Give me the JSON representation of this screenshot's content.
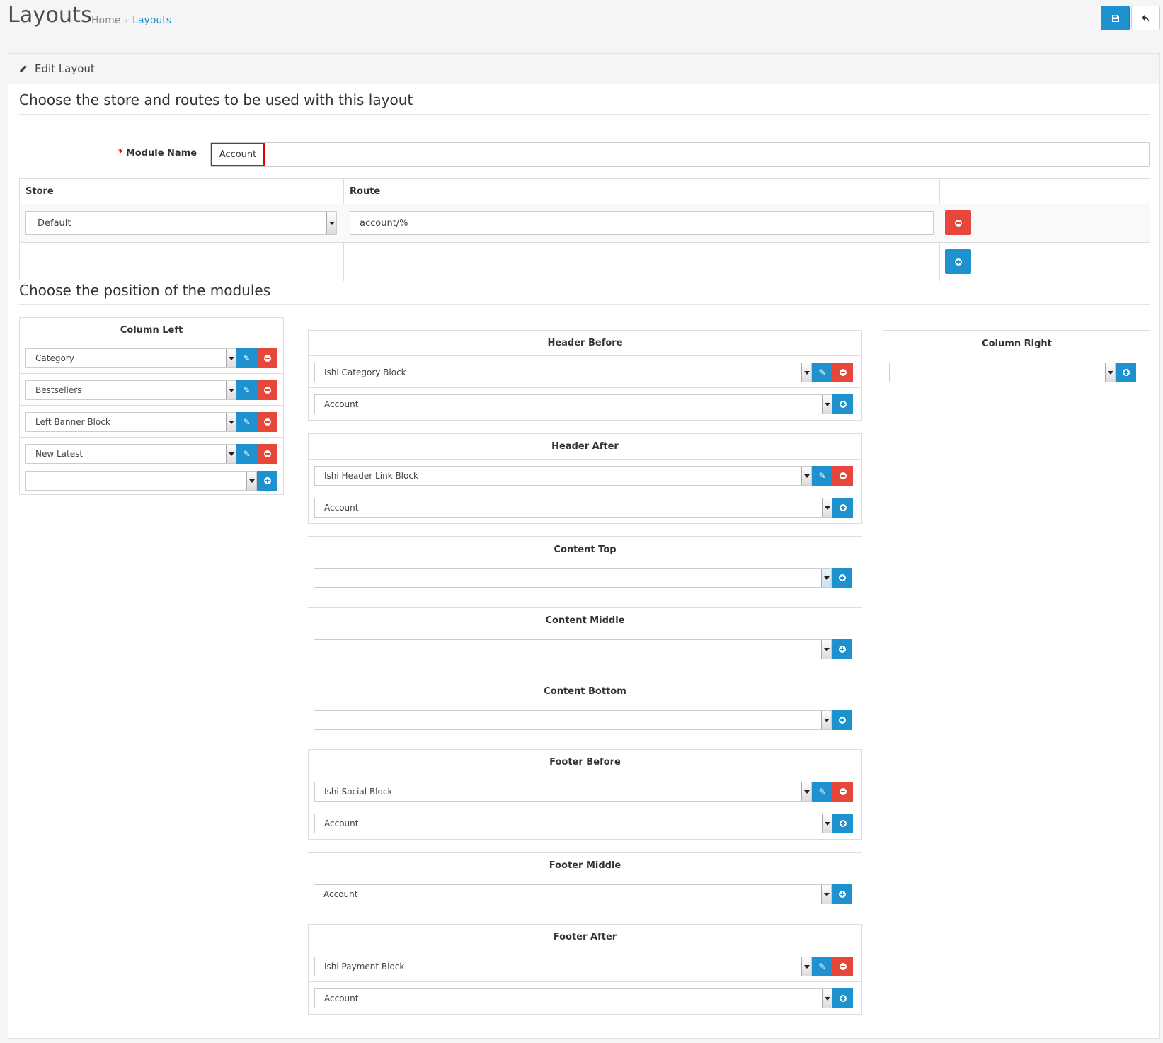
{
  "header": {
    "title": "Layouts",
    "breadcrumb": [
      "Home",
      "Layouts"
    ],
    "breadcrumb_separator": "›"
  },
  "panel": {
    "heading": "Edit Layout",
    "section1_title": "Choose the store and routes to be used with this layout",
    "section2_title": "Choose the position of the modules"
  },
  "form": {
    "module_name_required": "*",
    "module_name_label": "Module Name",
    "module_name_value": "Account"
  },
  "routes": {
    "col_store": "Store",
    "col_route": "Route",
    "rows": [
      {
        "store": "Default",
        "route": "account/%"
      }
    ]
  },
  "positions": {
    "column_left": {
      "title": "Column Left",
      "modules": [
        "Category",
        "Bestsellers",
        "Left Banner Block",
        "New Latest"
      ]
    },
    "header_before": {
      "title": "Header Before",
      "modules": [
        "Ishi Category Block"
      ],
      "add_value": "Account"
    },
    "header_after": {
      "title": "Header After",
      "modules": [
        "Ishi Header Link Block"
      ],
      "add_value": "Account"
    },
    "content_top": {
      "title": "Content Top",
      "add_value": ""
    },
    "content_middle": {
      "title": "Content Middle",
      "add_value": ""
    },
    "content_bottom": {
      "title": "Content Bottom",
      "add_value": ""
    },
    "footer_before": {
      "title": "Footer Before",
      "modules": [
        "Ishi Social Block"
      ],
      "add_value": "Account"
    },
    "footer_middle": {
      "title": "Footer Middle",
      "add_value": "Account"
    },
    "footer_after": {
      "title": "Footer After",
      "modules": [
        "Ishi Payment Block"
      ],
      "add_value": "Account"
    },
    "column_right": {
      "title": "Column Right",
      "add_value": ""
    }
  },
  "colors": {
    "primary": "#1e91cf",
    "danger": "#e7473a",
    "highlight_border": "#e00000"
  }
}
